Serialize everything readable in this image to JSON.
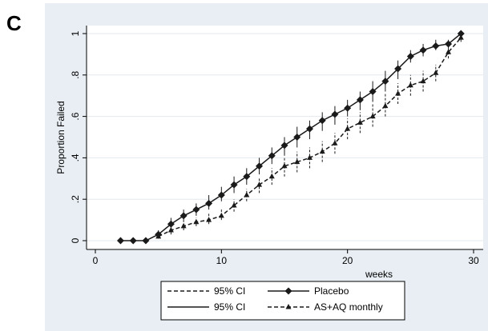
{
  "panel_label": "C",
  "colors": {
    "background": "#e8eef3",
    "plot_area": "#ffffff",
    "series": "#1a1a1a"
  },
  "chart_data": {
    "type": "line",
    "xlabel": "weeks",
    "ylabel": "Proportion Failed",
    "xlim": [
      0,
      30
    ],
    "ylim": [
      0,
      1
    ],
    "x_ticks": [
      0,
      10,
      20,
      30
    ],
    "x_tick_labels": [
      "0",
      "10",
      "20",
      "30"
    ],
    "y_ticks": [
      0,
      0.2,
      0.4,
      0.6,
      0.8,
      1
    ],
    "y_tick_labels": [
      "0",
      ".2",
      ".4",
      ".6",
      ".8",
      "1"
    ],
    "grid": "horizontal",
    "legend_position": "bottom",
    "legend": [
      {
        "label": "95% CI",
        "style": "dashed"
      },
      {
        "label": "Placebo",
        "style": "solid-diamond"
      },
      {
        "label": "95% CI",
        "style": "solid"
      },
      {
        "label": "AS+AQ monthly",
        "style": "dashed-triangle"
      }
    ],
    "series": [
      {
        "name": "Placebo",
        "marker": "diamond",
        "x": [
          2,
          3,
          4,
          5,
          6,
          7,
          8,
          9,
          10,
          11,
          12,
          13,
          14,
          15,
          16,
          17,
          18,
          19,
          20,
          21,
          22,
          23,
          24,
          25,
          26,
          27,
          28,
          29
        ],
        "y": [
          0.0,
          0.0,
          0.0,
          0.03,
          0.08,
          0.12,
          0.15,
          0.18,
          0.22,
          0.27,
          0.31,
          0.36,
          0.41,
          0.46,
          0.5,
          0.54,
          0.58,
          0.61,
          0.64,
          0.68,
          0.72,
          0.77,
          0.83,
          0.89,
          0.92,
          0.94,
          0.95,
          1.0
        ],
        "ci_low": [
          0.0,
          0.0,
          0.0,
          0.01,
          0.05,
          0.09,
          0.12,
          0.15,
          0.19,
          0.23,
          0.27,
          0.32,
          0.37,
          0.41,
          0.45,
          0.49,
          0.53,
          0.56,
          0.6,
          0.63,
          0.67,
          0.72,
          0.78,
          0.86,
          0.89,
          0.92,
          0.93,
          0.98
        ],
        "ci_high": [
          0.0,
          0.0,
          0.0,
          0.05,
          0.11,
          0.15,
          0.18,
          0.22,
          0.26,
          0.31,
          0.35,
          0.4,
          0.45,
          0.5,
          0.55,
          0.58,
          0.62,
          0.65,
          0.68,
          0.72,
          0.77,
          0.82,
          0.87,
          0.92,
          0.95,
          0.97,
          0.97,
          1.0
        ]
      },
      {
        "name": "AS+AQ monthly",
        "marker": "triangle",
        "x": [
          5,
          6,
          7,
          8,
          9,
          10,
          11,
          12,
          13,
          14,
          15,
          16,
          17,
          18,
          19,
          20,
          21,
          22,
          23,
          24,
          25,
          26,
          27,
          28,
          29
        ],
        "y": [
          0.02,
          0.05,
          0.07,
          0.09,
          0.1,
          0.12,
          0.17,
          0.22,
          0.27,
          0.31,
          0.36,
          0.38,
          0.4,
          0.43,
          0.47,
          0.54,
          0.57,
          0.6,
          0.65,
          0.71,
          0.75,
          0.77,
          0.81,
          0.91,
          0.98
        ],
        "ci_low": [
          0.01,
          0.03,
          0.05,
          0.07,
          0.08,
          0.1,
          0.14,
          0.19,
          0.23,
          0.27,
          0.31,
          0.33,
          0.35,
          0.38,
          0.42,
          0.49,
          0.52,
          0.55,
          0.6,
          0.66,
          0.7,
          0.72,
          0.77,
          0.88,
          0.96
        ],
        "ci_high": [
          0.03,
          0.07,
          0.09,
          0.11,
          0.13,
          0.15,
          0.2,
          0.25,
          0.3,
          0.35,
          0.4,
          0.43,
          0.45,
          0.48,
          0.52,
          0.59,
          0.62,
          0.66,
          0.71,
          0.76,
          0.8,
          0.82,
          0.85,
          0.94,
          1.0
        ]
      }
    ]
  }
}
